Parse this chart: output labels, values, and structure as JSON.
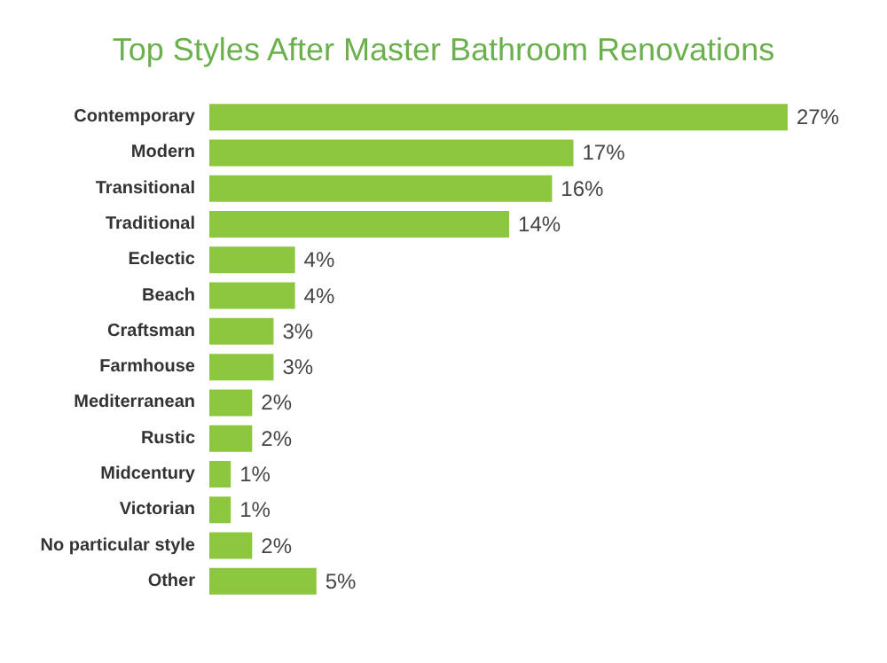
{
  "chart_data": {
    "type": "bar",
    "orientation": "horizontal",
    "title": "Top Styles After Master Bathroom Renovations",
    "categories": [
      "Contemporary",
      "Modern",
      "Transitional",
      "Traditional",
      "Eclectic",
      "Beach",
      "Craftsman",
      "Farmhouse",
      "Mediterranean",
      "Rustic",
      "Midcentury",
      "Victorian",
      "No particular style",
      "Other"
    ],
    "values": [
      27,
      17,
      16,
      14,
      4,
      4,
      3,
      3,
      2,
      2,
      1,
      1,
      2,
      5
    ],
    "value_labels": [
      "27%",
      "17%",
      "16%",
      "14%",
      "4%",
      "4%",
      "3%",
      "3%",
      "2%",
      "2%",
      "1%",
      "1%",
      "2%",
      "5%"
    ],
    "color": "#8dc63f"
  }
}
